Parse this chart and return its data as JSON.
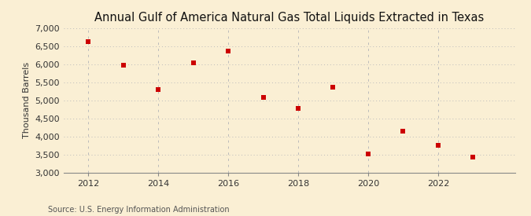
{
  "title": "Annual Gulf of America Natural Gas Total Liquids Extracted in Texas",
  "ylabel": "Thousand Barrels",
  "source": "Source: U.S. Energy Information Administration",
  "years": [
    2012,
    2013,
    2014,
    2015,
    2016,
    2017,
    2018,
    2019,
    2020,
    2021,
    2022,
    2023
  ],
  "values": [
    6630,
    5980,
    5310,
    6040,
    6370,
    5080,
    4770,
    5360,
    3530,
    4160,
    3750,
    3440
  ],
  "ylim": [
    3000,
    7000
  ],
  "yticks": [
    3000,
    3500,
    4000,
    4500,
    5000,
    5500,
    6000,
    6500,
    7000
  ],
  "xlim": [
    2011.3,
    2024.2
  ],
  "xticks": [
    2012,
    2014,
    2016,
    2018,
    2020,
    2022
  ],
  "marker_color": "#cc0000",
  "marker": "s",
  "marker_size": 22,
  "bg_color": "#faefd4",
  "grid_color": "#bbbbbb",
  "title_fontsize": 10.5,
  "label_fontsize": 8,
  "source_fontsize": 7,
  "tick_fontsize": 8
}
